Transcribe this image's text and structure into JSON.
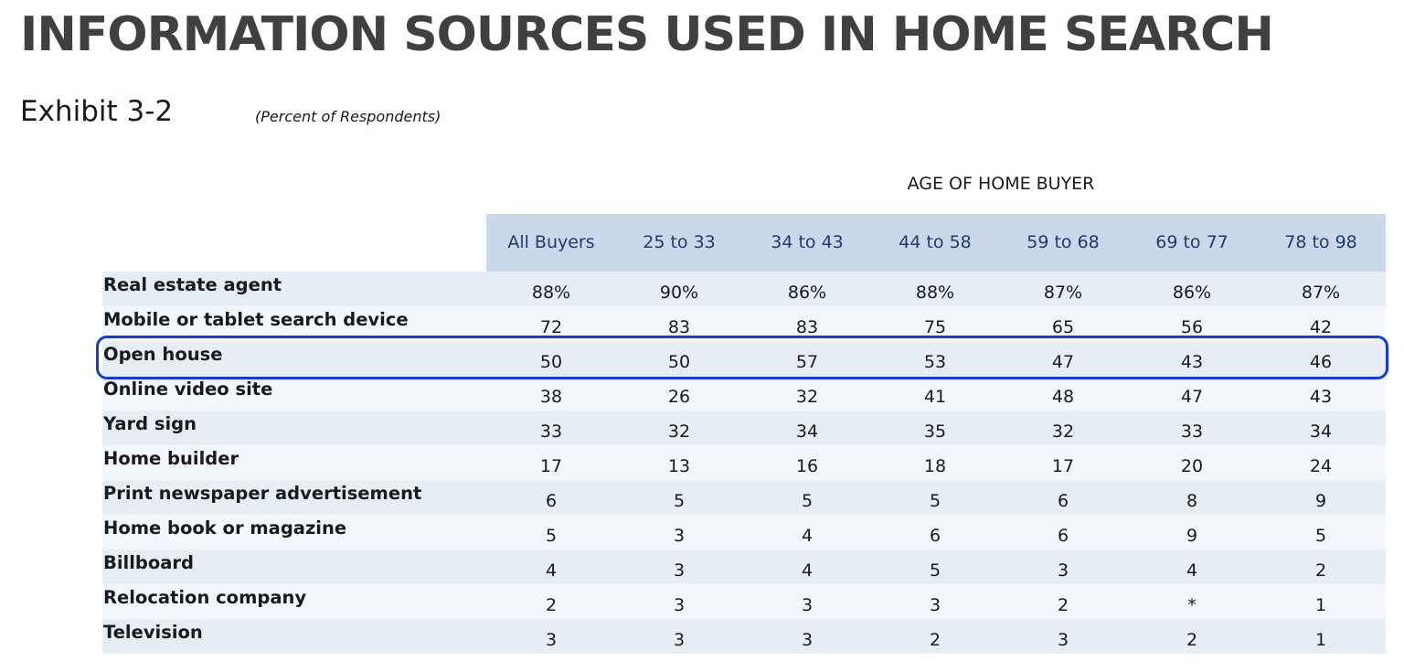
{
  "title": "INFORMATION SOURCES USED IN HOME SEARCH",
  "exhibit_label": "Exhibit 3-2",
  "unit_note": "(Percent of Respondents)",
  "group_header": "AGE OF HOME BUYER",
  "colors": {
    "header_band": "#c9d9ea",
    "header_text": "#1f3a6e",
    "row_odd": "#e6edf5",
    "row_even": "#f3f6fa",
    "highlight_border": "#1638e0",
    "title_text": "#404040"
  },
  "highlighted_row": "Open house",
  "chart_data": {
    "type": "table",
    "title": "INFORMATION SOURCES USED IN HOME SEARCH",
    "subtitle": "Exhibit 3-2",
    "columns": [
      "All Buyers",
      "25 to 33",
      "34 to 43",
      "44 to 58",
      "59 to 68",
      "69 to 77",
      "78 to 98"
    ],
    "rows": [
      {
        "label": "Real estate agent",
        "values": [
          "88%",
          "90%",
          "86%",
          "88%",
          "87%",
          "86%",
          "87%"
        ]
      },
      {
        "label": "Mobile or tablet search device",
        "values": [
          "72",
          "83",
          "83",
          "75",
          "65",
          "56",
          "42"
        ]
      },
      {
        "label": "Open house",
        "values": [
          "50",
          "50",
          "57",
          "53",
          "47",
          "43",
          "46"
        ]
      },
      {
        "label": "Online video site",
        "values": [
          "38",
          "26",
          "32",
          "41",
          "48",
          "47",
          "43"
        ]
      },
      {
        "label": "Yard sign",
        "values": [
          "33",
          "32",
          "34",
          "35",
          "32",
          "33",
          "34"
        ]
      },
      {
        "label": "Home builder",
        "values": [
          "17",
          "13",
          "16",
          "18",
          "17",
          "20",
          "24"
        ]
      },
      {
        "label": "Print newspaper advertisement",
        "values": [
          "6",
          "5",
          "5",
          "5",
          "6",
          "8",
          "9"
        ]
      },
      {
        "label": "Home book or magazine",
        "values": [
          "5",
          "3",
          "4",
          "6",
          "6",
          "9",
          "5"
        ]
      },
      {
        "label": "Billboard",
        "values": [
          "4",
          "3",
          "4",
          "5",
          "3",
          "4",
          "2"
        ]
      },
      {
        "label": "Relocation company",
        "values": [
          "2",
          "3",
          "3",
          "3",
          "2",
          "*",
          "1"
        ]
      },
      {
        "label": "Television",
        "values": [
          "3",
          "3",
          "3",
          "2",
          "3",
          "2",
          "1"
        ]
      }
    ]
  }
}
